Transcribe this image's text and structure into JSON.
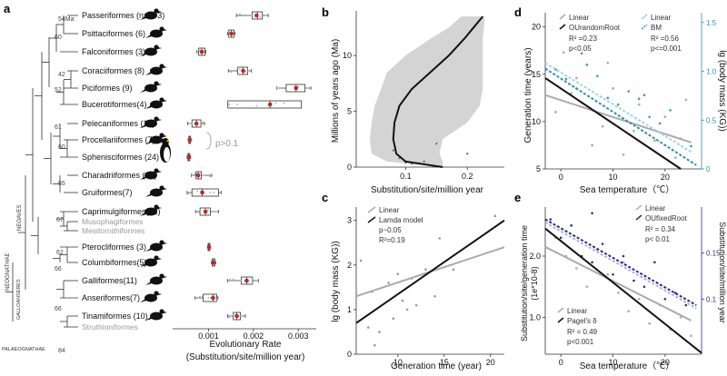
{
  "panel_letters": {
    "a": "a",
    "b": "b",
    "c": "c",
    "d": "d",
    "e": "e"
  },
  "tree": {
    "node_labels": {
      "ma": "54Ma",
      "n60a": "60",
      "n42": "42",
      "n52": "52",
      "n61": "61",
      "n60b": "60",
      "n65": "65",
      "n67": "67",
      "n62": "62",
      "n66a": "66",
      "n66b": "66",
      "n84": "84"
    },
    "clade_labels": {
      "neoaves": "NEOAVES",
      "neognathae": "NEOGNATHAE",
      "galloanseres": "GALLOANSERES",
      "palaeognathae": "PALAEOGNATHAE"
    },
    "taxa": [
      {
        "label": "Passeriformes (n=173)",
        "median": 0.00209,
        "q1": 0.00197,
        "q3": 0.0022,
        "wlo": 0.00162,
        "whi": 0.00233,
        "mean": 0.00207,
        "grey": false
      },
      {
        "label": "Psittaciformes (6)",
        "median": 0.00151,
        "q1": 0.00145,
        "q3": 0.00157,
        "wlo": 0.00142,
        "whi": 0.00159,
        "mean": 0.00151,
        "grey": false
      },
      {
        "label": "Falconiformes (3)",
        "median": 0.00085,
        "q1": 0.00078,
        "q3": 0.00092,
        "wlo": 0.00074,
        "whi": 0.00094,
        "mean": 0.00085,
        "grey": false
      },
      {
        "label": "Coraciiformes (8)",
        "median": 0.00177,
        "q1": 0.00165,
        "q3": 0.00187,
        "wlo": 0.00144,
        "whi": 0.00195,
        "mean": 0.00177,
        "grey": false
      },
      {
        "label": "Piciformes (9)",
        "median": 0.00295,
        "q1": 0.00273,
        "q3": 0.00315,
        "wlo": 0.00252,
        "whi": 0.00328,
        "mean": 0.00295,
        "grey": false
      },
      {
        "label": "Bucerotiformes(4)",
        "median": 0.00237,
        "q1": 0.00143,
        "q3": 0.00307,
        "wlo": 0.00143,
        "whi": 0.00307,
        "mean": 0.00237,
        "grey": false
      },
      {
        "label": "Pelecaniformes (17)",
        "median": 0.00073,
        "q1": 0.00063,
        "q3": 0.00083,
        "wlo": 0.00053,
        "whi": 0.00091,
        "mean": 0.00073,
        "grey": false
      },
      {
        "label": "Procellariiformes (7)",
        "median": 0.00058,
        "q1": 0.00056,
        "q3": 0.0006,
        "wlo": 0.00055,
        "whi": 0.00061,
        "mean": 0.00058,
        "grey": false
      },
      {
        "label": "Sphenisciformes (24)",
        "median": 0.00056,
        "q1": 0.00054,
        "q3": 0.00058,
        "wlo": 0.00052,
        "whi": 0.0006,
        "mean": 0.00056,
        "grey": false
      },
      {
        "label": "Charadriiformes (29)",
        "median": 0.00077,
        "q1": 0.00072,
        "q3": 0.00084,
        "wlo": 0.00062,
        "whi": 0.00107,
        "mean": 0.00077,
        "grey": false
      },
      {
        "label": "Gruiformes(7)",
        "median": 0.00086,
        "q1": 0.00063,
        "q3": 0.00122,
        "wlo": 0.00052,
        "whi": 0.00128,
        "mean": 0.00086,
        "grey": false
      },
      {
        "label": "Caprimulgiformes(12)",
        "median": 0.00093,
        "q1": 0.00081,
        "q3": 0.00104,
        "wlo": 0.00071,
        "whi": 0.00122,
        "mean": 0.00093,
        "grey": false
      },
      {
        "label": "Musophagiformes",
        "grey": true
      },
      {
        "label": "Mesitornithiformes",
        "grey": true
      },
      {
        "label": "Pterocliformes (3)",
        "median": 0.00101,
        "q1": 0.00099,
        "q3": 0.00103,
        "wlo": 0.00098,
        "whi": 0.00104,
        "mean": 0.00101,
        "grey": false
      },
      {
        "label": "Columbiformes(5)",
        "median": 0.00111,
        "q1": 0.00108,
        "q3": 0.00114,
        "wlo": 0.00106,
        "whi": 0.00116,
        "mean": 0.00111,
        "grey": false
      },
      {
        "label": "Galliformes(11)",
        "median": 0.00185,
        "q1": 0.00173,
        "q3": 0.00198,
        "wlo": 0.00142,
        "whi": 0.00211,
        "mean": 0.00185,
        "grey": false
      },
      {
        "label": "Anseriformes(7)",
        "median": 0.0011,
        "q1": 0.00088,
        "q3": 0.00118,
        "wlo": 0.0007,
        "whi": 0.00121,
        "mean": 0.0011,
        "grey": false
      },
      {
        "label": "Tinamiformes (10)",
        "median": 0.00163,
        "q1": 0.00155,
        "q3": 0.00171,
        "wlo": 0.00142,
        "whi": 0.00182,
        "mean": 0.00163,
        "grey": false
      },
      {
        "label": "Struthioniformes",
        "grey": true
      }
    ]
  },
  "chart_data": [
    {
      "id": "a",
      "type": "box",
      "xlabel": "Evolutionary Rate",
      "xlabel2": "(Substitution/site/million year)",
      "xlim": [
        0.0002,
        0.0034
      ],
      "xticks": [
        0.001,
        0.002,
        0.003
      ],
      "xtick_labels": [
        "0.001",
        "0.002",
        "0.003"
      ],
      "annotation": "p>0.1",
      "colors": {
        "box_line": "#333333",
        "mean_point": "#c0262b",
        "points": "#aaaaaa"
      }
    },
    {
      "id": "b",
      "type": "line",
      "xlabel": "Substitution/site/million year",
      "ylabel": "Millions of years ago (Ma)",
      "xlim": [
        0.02,
        0.26
      ],
      "ylim": [
        0,
        14
      ],
      "xticks": [
        0.1,
        0.2
      ],
      "xtick_labels": [
        "0.1",
        "0.2"
      ],
      "yticks": [
        0,
        5,
        10
      ],
      "ytick_labels": [
        "0",
        "5",
        "10"
      ],
      "line": {
        "x": [
          0.16,
          0.1,
          0.085,
          0.08,
          0.082,
          0.09,
          0.11,
          0.14,
          0.17,
          0.195,
          0.21,
          0.225
        ],
        "y": [
          0,
          0.5,
          1.2,
          2.5,
          4,
          5.5,
          7,
          8.5,
          10,
          11.5,
          12.5,
          13.5
        ]
      },
      "band_lo": [
        0.16,
        0.07,
        0.045,
        0.042,
        0.045,
        0.05,
        0.06,
        0.07,
        0.1,
        0.14,
        0.17,
        0.19
      ],
      "band_hi": [
        0.16,
        0.16,
        0.155,
        0.16,
        0.2,
        0.22,
        0.225,
        0.225,
        0.225,
        0.225,
        0.227,
        0.228
      ],
      "points": {
        "x": [
          0.1,
          0.13,
          0.2,
          0.15,
          0.08,
          0.09,
          0.11
        ],
        "y": [
          0.4,
          0.5,
          1.2,
          2.1,
          1.5,
          0.8,
          0.3
        ]
      },
      "colors": {
        "band": "#d4d4d4",
        "line": "#111111"
      }
    },
    {
      "id": "c",
      "type": "scatter",
      "xlabel": "Generation time (year)",
      "ylabel": "lg (body mass (KG))",
      "xlim": [
        5.5,
        21.5
      ],
      "ylim": [
        0,
        3.3
      ],
      "xticks": [
        10,
        15,
        20
      ],
      "xtick_labels": [
        "10",
        "15",
        "20"
      ],
      "yticks": [
        0,
        1,
        2,
        3
      ],
      "ytick_labels": [
        "0",
        "1",
        "2",
        "3"
      ],
      "legend": {
        "items": [
          "Linear",
          "Lamda model"
        ],
        "stats": [
          "p~0.05",
          "R²=0.19"
        ]
      },
      "lines": [
        {
          "name": "Linear",
          "x": [
            5.5,
            21.5
          ],
          "y": [
            1.3,
            2.4
          ],
          "color": "#aaaaaa"
        },
        {
          "name": "Lamda model",
          "x": [
            5.5,
            21.5
          ],
          "y": [
            0.7,
            3.0
          ],
          "color": "#111111"
        }
      ],
      "points": {
        "x": [
          6,
          6.8,
          7.2,
          7.5,
          8,
          9,
          9.5,
          10,
          10.5,
          11,
          11.5,
          12,
          13,
          14,
          14.5,
          16,
          20.5
        ],
        "y": [
          2.1,
          0.6,
          1.4,
          0.2,
          0.5,
          1.6,
          0.8,
          1.8,
          1.2,
          1.0,
          1.7,
          1.1,
          1.9,
          1.3,
          2.6,
          1.9,
          3.1
        ]
      },
      "colors": {
        "points": "#999999"
      }
    },
    {
      "id": "d",
      "type": "scatter",
      "xlabel": "Sea temperature（℃）",
      "ylabel": "Generation time (years)",
      "ylabel_right": "lg (body mass (KG))",
      "xlim": [
        -3,
        27
      ],
      "ylim": [
        5,
        21.5
      ],
      "ylim_right": [
        0,
        1.6
      ],
      "xticks": [
        0,
        10,
        20
      ],
      "xtick_labels": [
        "0",
        "10",
        "20"
      ],
      "yticks": [
        5,
        10,
        15,
        20
      ],
      "ytick_labels": [
        "5",
        "10",
        "15",
        "20"
      ],
      "yticks_right": [
        0,
        0.5,
        1.0,
        1.5
      ],
      "ytick_labels_right": [
        "0",
        "0.5",
        "1.0",
        "1.5"
      ],
      "legend_left": {
        "items": [
          "Linear",
          "OUrandomRoot"
        ],
        "stats": [
          "R² =0.23",
          "p<0.05"
        ]
      },
      "legend_right": {
        "items": [
          "Linear",
          "BM"
        ],
        "stats": [
          "R² =0.56",
          "p<=0.001"
        ]
      },
      "lines": [
        {
          "name": "Linear",
          "x": [
            -3,
            25
          ],
          "y": [
            12.8,
            7.8
          ],
          "color": "#aaaaaa"
        },
        {
          "name": "OUrandomRoot",
          "x": [
            -3,
            23
          ],
          "y": [
            14.6,
            5
          ],
          "color": "#111111"
        },
        {
          "name": "Linear (right)",
          "x": [
            -3,
            25
          ],
          "y": [
            16.2,
            6.8
          ],
          "color": "#9dd5ea"
        },
        {
          "name": "BM",
          "x": [
            -3,
            26
          ],
          "y": [
            15.6,
            5.4
          ],
          "color": "#2f8fb3"
        }
      ],
      "points_grey": {
        "x": [
          -1,
          0.5,
          2,
          4,
          6,
          8,
          10,
          12,
          14,
          15,
          18,
          20,
          22,
          24,
          3,
          9
        ],
        "y": [
          11,
          17.3,
          13,
          12,
          7.5,
          9.5,
          13.5,
          6.5,
          9,
          11.8,
          8,
          10.5,
          6.2,
          12.3,
          14.6,
          16.2
        ]
      },
      "points_blue": {
        "x": [
          -1,
          1,
          3,
          5,
          7,
          9,
          11,
          13,
          15,
          17,
          19,
          21,
          23,
          25,
          4,
          16
        ],
        "y": [
          15.5,
          14.5,
          13.5,
          16,
          14.8,
          12.5,
          11.8,
          13.2,
          12.4,
          10.5,
          9.8,
          11.2,
          8.2,
          7.4,
          17.2,
          12.8
        ]
      },
      "colors": {
        "grey": "#b0b0b0",
        "blue": "#3a98c4"
      }
    },
    {
      "id": "e",
      "type": "scatter",
      "xlabel": "Sea temperature（℃）",
      "ylabel": "Substitution/site/generation time",
      "ylabel2": "(1e*10-8)",
      "ylabel_right": "Substitution/site/million year",
      "xlim": [
        -3,
        27
      ],
      "ylim": [
        0.4,
        2.8
      ],
      "ylim_right": [
        0.04,
        0.2
      ],
      "xticks": [
        0,
        10,
        20
      ],
      "xtick_labels": [
        "0",
        "10",
        "20"
      ],
      "yticks": [
        1.0,
        2.0
      ],
      "ytick_labels": [
        "1.0",
        "2.0"
      ],
      "yticks_right": [
        0.1,
        0.15
      ],
      "ytick_labels_right": [
        "0.1",
        "0.15"
      ],
      "legend_top": {
        "items": [
          "Linear",
          "OUfixedRoot"
        ],
        "stats": [
          "R² = 0.34",
          "p< 0.01"
        ]
      },
      "legend_bottom": {
        "items": [
          "Linear",
          "Pagel's δ"
        ],
        "stats": [
          "R² = 0.49",
          "p<0.001"
        ]
      },
      "lines": [
        {
          "name": "Linear",
          "x": [
            -3,
            25
          ],
          "y": [
            2.15,
            0.95
          ],
          "color": "#aaaaaa"
        },
        {
          "name": "Pagel's δ",
          "x": [
            -3,
            27
          ],
          "y": [
            2.45,
            0.42
          ],
          "color": "#111111"
        },
        {
          "name": "Linear (top)",
          "x": [
            -3,
            26
          ],
          "y": [
            2.55,
            1.15
          ],
          "color": "#b0b0e0"
        },
        {
          "name": "OUfixedRoot",
          "x": [
            -3,
            26
          ],
          "y": [
            2.6,
            1.2
          ],
          "color": "#2b2b8a"
        }
      ],
      "points_grey": {
        "x": [
          -1,
          1,
          3,
          5,
          7,
          9,
          11,
          13,
          15,
          17,
          19,
          21,
          23,
          25,
          2,
          12
        ],
        "y": [
          2.3,
          2.0,
          1.8,
          1.5,
          2.1,
          1.7,
          1.4,
          1.1,
          1.3,
          0.9,
          1.2,
          0.8,
          1.0,
          0.7,
          2.5,
          1.9
        ]
      },
      "points_blue": {
        "x": [
          -2,
          0,
          2,
          4,
          6,
          8,
          10,
          14,
          16,
          18,
          20,
          22,
          24,
          6,
          12
        ],
        "y": [
          2.6,
          2.3,
          2.5,
          2.0,
          1.9,
          2.2,
          1.7,
          1.6,
          1.5,
          1.9,
          1.3,
          1.4,
          1.2,
          2.7,
          2.0
        ]
      },
      "colors": {
        "grey": "#b0b0b0",
        "blue": "#2b2b8a"
      }
    }
  ]
}
